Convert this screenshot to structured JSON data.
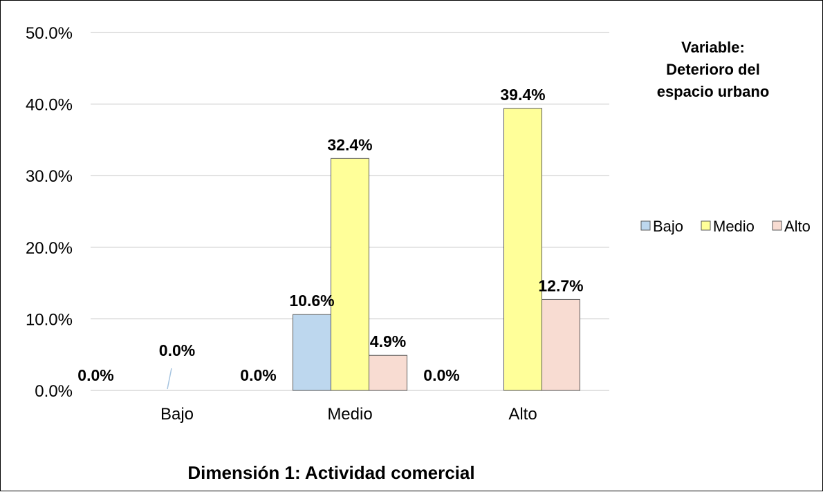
{
  "chart_data": {
    "type": "bar",
    "categories": [
      "Bajo",
      "Medio",
      "Alto"
    ],
    "series": [
      {
        "name": "Bajo",
        "values": [
          0.0,
          10.6,
          0.0
        ],
        "labels": [
          "0.0%",
          "10.6%",
          "0.0%"
        ]
      },
      {
        "name": "Medio",
        "values": [
          0.0,
          32.4,
          39.4
        ],
        "labels": [
          "0.0%",
          "32.4%",
          "39.4%"
        ]
      },
      {
        "name": "Alto",
        "values": [
          0.0,
          4.9,
          12.7
        ],
        "labels": [
          "0.0%",
          "4.9%",
          "12.7%"
        ]
      }
    ],
    "colors": [
      "#bdd7ee",
      "#ffff99",
      "#f8dcd2"
    ],
    "ylim": [
      0,
      50
    ],
    "yticks": [
      "0.0%",
      "10.0%",
      "20.0%",
      "30.0%",
      "40.0%",
      "50.0%"
    ],
    "grid": true,
    "xlabel": "Dimensión 1: Actividad comercial",
    "legend": {
      "title": [
        "Variable:",
        "Deterioro del",
        "espacio urbano"
      ],
      "placement": "right"
    }
  }
}
